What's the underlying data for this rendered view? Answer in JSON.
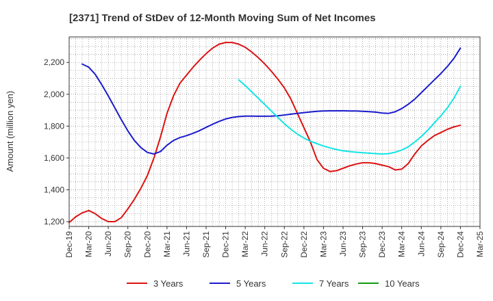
{
  "chart_data": {
    "type": "line",
    "title": "[2371]  Trend of StDev of 12-Month Moving Sum of Net Incomes",
    "xlabel": "",
    "ylabel": "Amount (million yen)",
    "ylim": [
      1170,
      2360
    ],
    "yticks": [
      1200,
      1400,
      1600,
      1800,
      2000,
      2200
    ],
    "ytick_labels": [
      "1,200",
      "1,400",
      "1,600",
      "1,800",
      "2,000",
      "2,200"
    ],
    "xticks": [
      "2019-12",
      "2020-03",
      "2020-06",
      "2020-09",
      "2020-12",
      "2021-03",
      "2021-06",
      "2021-09",
      "2021-12",
      "2022-03",
      "2022-06",
      "2022-09",
      "2022-12",
      "2023-03",
      "2023-06",
      "2023-09",
      "2023-12",
      "2024-03",
      "2024-06",
      "2024-09",
      "2024-12",
      "2025-03"
    ],
    "xtick_labels": [
      "Dec-19",
      "Mar-20",
      "Jun-20",
      "Sep-20",
      "Dec-20",
      "Mar-21",
      "Jun-21",
      "Sep-21",
      "Dec-21",
      "Mar-22",
      "Jun-22",
      "Sep-22",
      "Dec-22",
      "Mar-23",
      "Jun-23",
      "Sep-23",
      "Dec-23",
      "Mar-24",
      "Jun-24",
      "Sep-24",
      "Dec-24",
      "Mar-25"
    ],
    "grid": true,
    "legend_position": "bottom",
    "series": [
      {
        "name": "3 Years",
        "color": "#dd1111",
        "x": [
          "2019-12",
          "2020-01",
          "2020-02",
          "2020-03",
          "2020-04",
          "2020-05",
          "2020-06",
          "2020-07",
          "2020-08",
          "2020-09",
          "2020-10",
          "2020-11",
          "2020-12",
          "2021-01",
          "2021-02",
          "2021-03",
          "2021-04",
          "2021-05",
          "2021-06",
          "2021-07",
          "2021-08",
          "2021-09",
          "2021-10",
          "2021-11",
          "2021-12",
          "2022-01",
          "2022-02",
          "2022-03",
          "2022-04",
          "2022-05",
          "2022-06",
          "2022-07",
          "2022-08",
          "2022-09",
          "2022-10",
          "2022-11",
          "2022-12",
          "2023-01",
          "2023-02",
          "2023-03",
          "2023-04",
          "2023-05",
          "2023-06",
          "2023-07",
          "2023-08",
          "2023-09",
          "2023-10",
          "2023-11",
          "2023-12",
          "2024-01",
          "2024-02",
          "2024-03",
          "2024-04",
          "2024-05",
          "2024-06",
          "2024-07",
          "2024-08",
          "2024-09",
          "2024-10",
          "2024-11",
          "2024-12"
        ],
        "y": [
          1195,
          1230,
          1255,
          1270,
          1250,
          1220,
          1200,
          1200,
          1225,
          1280,
          1340,
          1410,
          1490,
          1600,
          1730,
          1880,
          1990,
          2070,
          2120,
          2170,
          2215,
          2255,
          2290,
          2315,
          2325,
          2325,
          2315,
          2295,
          2265,
          2230,
          2190,
          2145,
          2095,
          2040,
          1970,
          1880,
          1790,
          1700,
          1590,
          1535,
          1515,
          1520,
          1535,
          1550,
          1562,
          1570,
          1570,
          1565,
          1555,
          1545,
          1525,
          1530,
          1565,
          1625,
          1675,
          1710,
          1740,
          1760,
          1780,
          1795,
          1805
        ]
      },
      {
        "name": "5 Years",
        "color": "#1a1acc",
        "x": [
          "2020-02",
          "2020-03",
          "2020-04",
          "2020-05",
          "2020-06",
          "2020-07",
          "2020-08",
          "2020-09",
          "2020-10",
          "2020-11",
          "2020-12",
          "2021-01",
          "2021-02",
          "2021-03",
          "2021-04",
          "2021-05",
          "2021-06",
          "2021-07",
          "2021-08",
          "2021-09",
          "2021-10",
          "2021-11",
          "2021-12",
          "2022-01",
          "2022-02",
          "2022-03",
          "2022-04",
          "2022-05",
          "2022-06",
          "2022-07",
          "2022-08",
          "2022-09",
          "2022-10",
          "2022-11",
          "2022-12",
          "2023-01",
          "2023-02",
          "2023-03",
          "2023-04",
          "2023-05",
          "2023-06",
          "2023-07",
          "2023-08",
          "2023-09",
          "2023-10",
          "2023-11",
          "2023-12",
          "2024-01",
          "2024-02",
          "2024-03",
          "2024-04",
          "2024-05",
          "2024-06",
          "2024-07",
          "2024-08",
          "2024-09",
          "2024-10",
          "2024-11",
          "2024-12"
        ],
        "y": [
          2190,
          2170,
          2125,
          2060,
          1990,
          1915,
          1840,
          1770,
          1710,
          1665,
          1635,
          1625,
          1640,
          1680,
          1710,
          1728,
          1740,
          1755,
          1772,
          1792,
          1812,
          1830,
          1845,
          1855,
          1860,
          1863,
          1863,
          1862,
          1862,
          1863,
          1865,
          1870,
          1875,
          1880,
          1885,
          1889,
          1893,
          1895,
          1896,
          1896,
          1896,
          1895,
          1895,
          1893,
          1891,
          1888,
          1882,
          1880,
          1890,
          1910,
          1937,
          1970,
          2010,
          2050,
          2090,
          2130,
          2175,
          2225,
          2290
        ]
      },
      {
        "name": "7 Years",
        "color": "#11e4e4",
        "x": [
          "2022-02",
          "2022-03",
          "2022-04",
          "2022-05",
          "2022-06",
          "2022-07",
          "2022-08",
          "2022-09",
          "2022-10",
          "2022-11",
          "2022-12",
          "2023-01",
          "2023-02",
          "2023-03",
          "2023-04",
          "2023-05",
          "2023-06",
          "2023-07",
          "2023-08",
          "2023-09",
          "2023-10",
          "2023-11",
          "2023-12",
          "2024-01",
          "2024-02",
          "2024-03",
          "2024-04",
          "2024-05",
          "2024-06",
          "2024-07",
          "2024-08",
          "2024-09",
          "2024-10",
          "2024-11",
          "2024-12"
        ],
        "y": [
          2090,
          2055,
          2015,
          1975,
          1935,
          1895,
          1855,
          1815,
          1780,
          1750,
          1725,
          1705,
          1690,
          1675,
          1663,
          1653,
          1645,
          1640,
          1636,
          1633,
          1630,
          1627,
          1625,
          1627,
          1636,
          1650,
          1670,
          1700,
          1735,
          1775,
          1820,
          1865,
          1915,
          1975,
          2050
        ]
      },
      {
        "name": "10 Years",
        "color": "#119911",
        "x": [],
        "y": []
      }
    ]
  }
}
